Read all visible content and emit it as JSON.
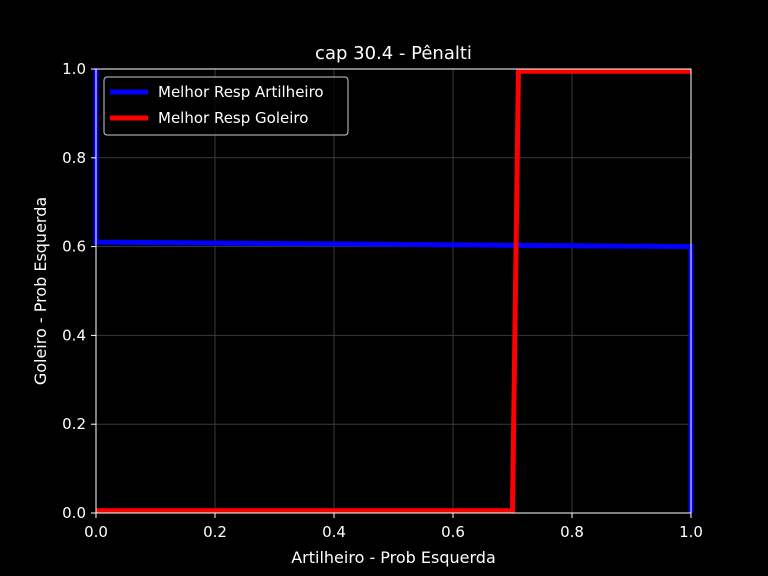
{
  "chart_data": {
    "type": "line",
    "title": "cap 30.4 - Pênalti",
    "xlabel": "Artilheiro - Prob Esquerda",
    "ylabel": "Goleiro - Prob Esquerda",
    "xlim": [
      0,
      1
    ],
    "ylim": [
      0,
      1
    ],
    "xticks": [
      "0.0",
      "0.2",
      "0.4",
      "0.6",
      "0.8",
      "1.0"
    ],
    "yticks": [
      "0.0",
      "0.2",
      "0.4",
      "0.6",
      "0.8",
      "1.0"
    ],
    "grid": true,
    "legend_position": "top-left",
    "series": [
      {
        "name": "Melhor Resp Artilheiro",
        "color": "#0000ff",
        "x": [
          0,
          0,
          1,
          1
        ],
        "y": [
          1.0,
          0.61,
          0.6,
          0.0
        ]
      },
      {
        "name": "Melhor Resp Goleiro",
        "color": "#ff0000",
        "x": [
          0,
          0.7,
          0.71,
          1
        ],
        "y": [
          0.005,
          0.005,
          0.995,
          0.995
        ]
      }
    ]
  }
}
